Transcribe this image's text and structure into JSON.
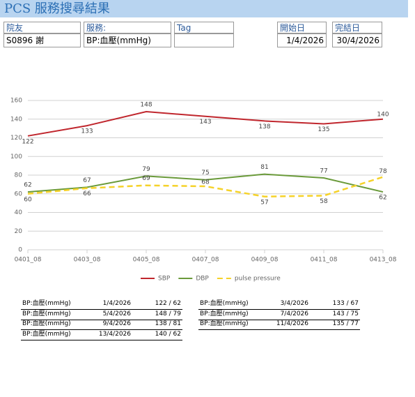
{
  "header": {
    "title": "PCS 服務搜尋結果"
  },
  "form": {
    "resident": {
      "label": "院友",
      "value": "S0896 謝"
    },
    "service": {
      "label": "服務:",
      "value": "BP:血壓(mmHg)"
    },
    "tag": {
      "label": "Tag"
    },
    "start": {
      "label": "開始日",
      "value": "1/4/2026"
    },
    "end": {
      "label": "完結日",
      "value": "30/4/2026"
    }
  },
  "chart_data": {
    "type": "line",
    "categories": [
      "0401_08",
      "0403_08",
      "0405_08",
      "0407_08",
      "0409_08",
      "0411_08",
      "0413_08"
    ],
    "series": [
      {
        "name": "SBP",
        "color": "#c0262d",
        "values": [
          122,
          133,
          148,
          143,
          138,
          135,
          140
        ]
      },
      {
        "name": "DBP",
        "color": "#6a9a3a",
        "values": [
          62,
          67,
          79,
          75,
          81,
          77,
          62
        ]
      },
      {
        "name": "pulse pressure",
        "color": "#f5d22a",
        "dashed": true,
        "values": [
          60,
          66,
          69,
          68,
          57,
          58,
          78
        ]
      }
    ],
    "ylim": [
      0,
      160
    ],
    "yticks": [
      0,
      20,
      40,
      60,
      80,
      100,
      120,
      140,
      160
    ],
    "grid": true,
    "legend": "bottom"
  },
  "results": [
    [
      "BP:血壓(mmHg)",
      "1/4/2026",
      "122 / 62"
    ],
    [
      "BP:血壓(mmHg)",
      "3/4/2026",
      "133 / 67"
    ],
    [
      "BP:血壓(mmHg)",
      "5/4/2026",
      "148 / 79"
    ],
    [
      "BP:血壓(mmHg)",
      "7/4/2026",
      "143 / 75"
    ],
    [
      "BP:血壓(mmHg)",
      "9/4/2026",
      "138 / 81"
    ],
    [
      "BP:血壓(mmHg)",
      "11/4/2026",
      "135 / 77"
    ],
    [
      "BP:血壓(mmHg)",
      "13/4/2026",
      "140 / 62"
    ]
  ]
}
